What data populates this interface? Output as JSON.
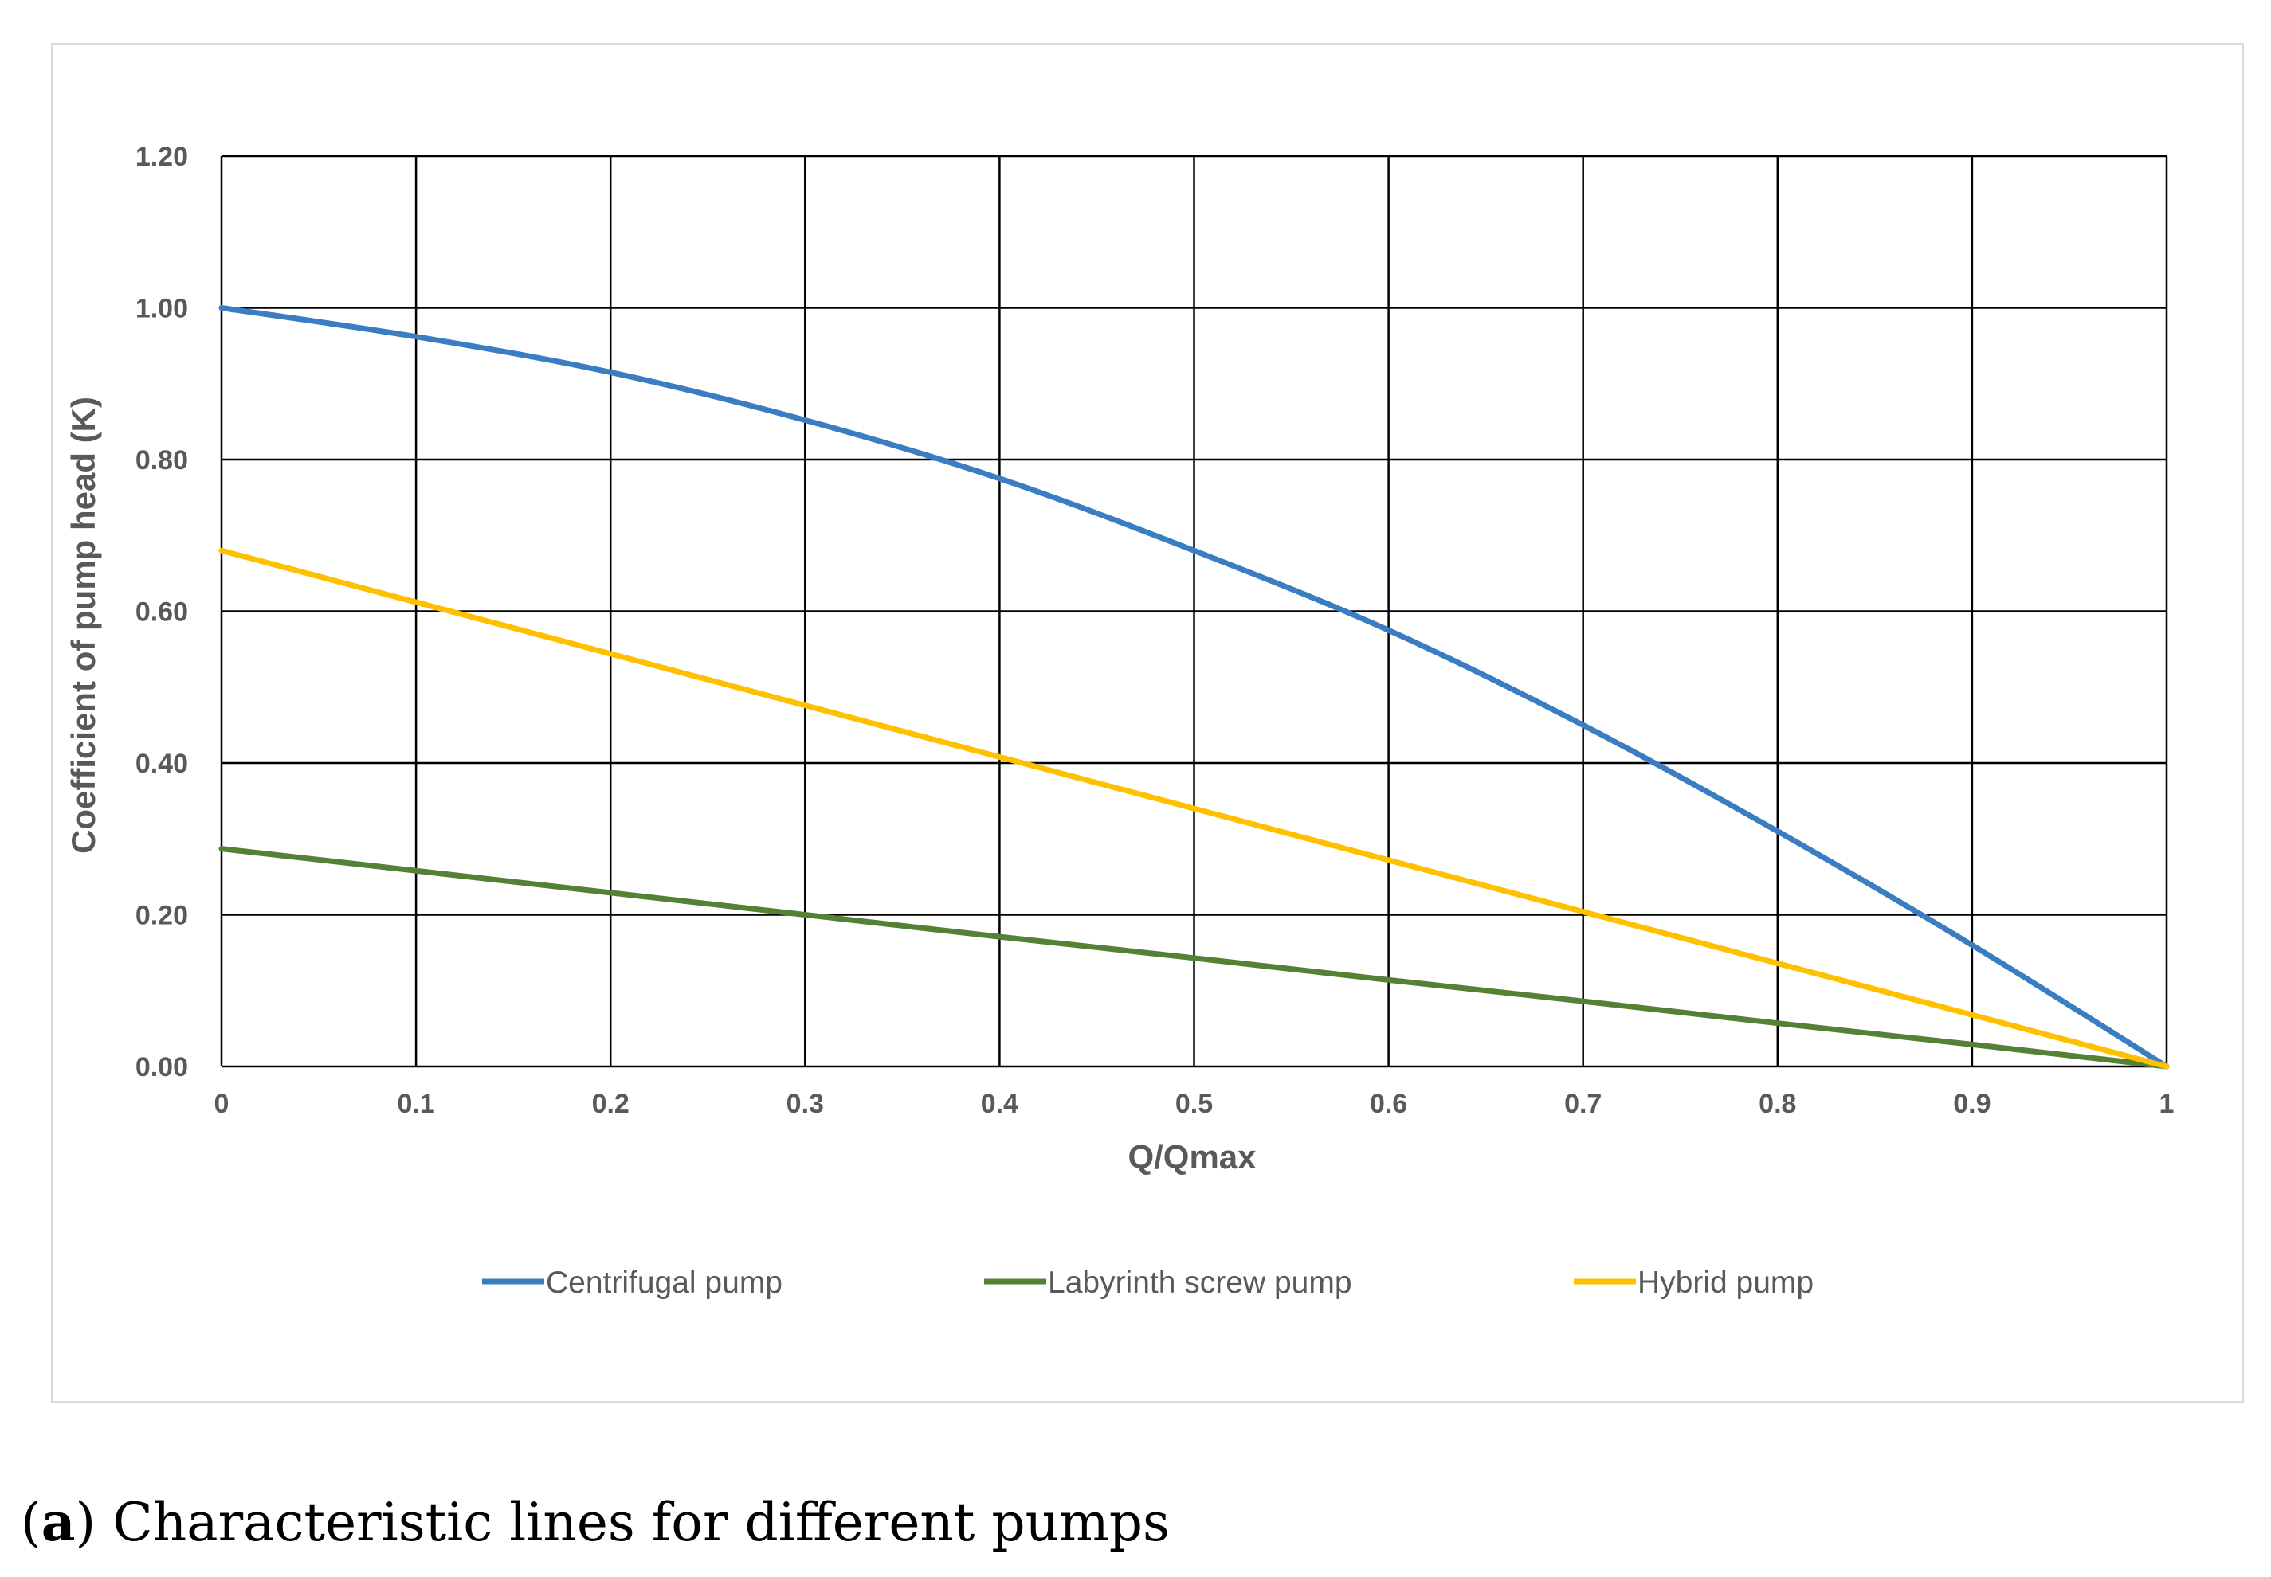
{
  "chart_data": {
    "type": "line",
    "xlabel": "Q/Qmax",
    "ylabel": "Coefficient of pump head (K)",
    "xlim": [
      0,
      1
    ],
    "ylim": [
      0,
      1.2
    ],
    "x_ticks": [
      "0",
      "0.1",
      "0.2",
      "0.3",
      "0.4",
      "0.5",
      "0.6",
      "0.7",
      "0.8",
      "0.9",
      "1"
    ],
    "y_ticks": [
      "0.00",
      "0.20",
      "0.40",
      "0.60",
      "0.80",
      "1.00",
      "1.20"
    ],
    "grid": true,
    "legend_position": "bottom",
    "x": [
      0,
      0.1,
      0.2,
      0.3,
      0.4,
      0.5,
      0.6,
      0.7,
      0.8,
      0.9,
      1
    ],
    "series": [
      {
        "name": "Centrifugal pump",
        "color": "#3a7dc2",
        "values": [
          1.0,
          0.962,
          0.915,
          0.852,
          0.775,
          0.68,
          0.575,
          0.45,
          0.31,
          0.16,
          0.0
        ]
      },
      {
        "name": "Labyrinth screw pump",
        "color": "#538135",
        "values": [
          0.287,
          0.258,
          0.229,
          0.2,
          0.171,
          0.143,
          0.114,
          0.086,
          0.057,
          0.029,
          0.0
        ]
      },
      {
        "name": "Hybrid pump",
        "color": "#ffc000",
        "values": [
          0.68,
          0.612,
          0.544,
          0.476,
          0.408,
          0.34,
          0.272,
          0.204,
          0.136,
          0.068,
          0.0
        ]
      }
    ]
  },
  "caption": {
    "label": "a",
    "text": " Characteristic lines for different pumps"
  }
}
